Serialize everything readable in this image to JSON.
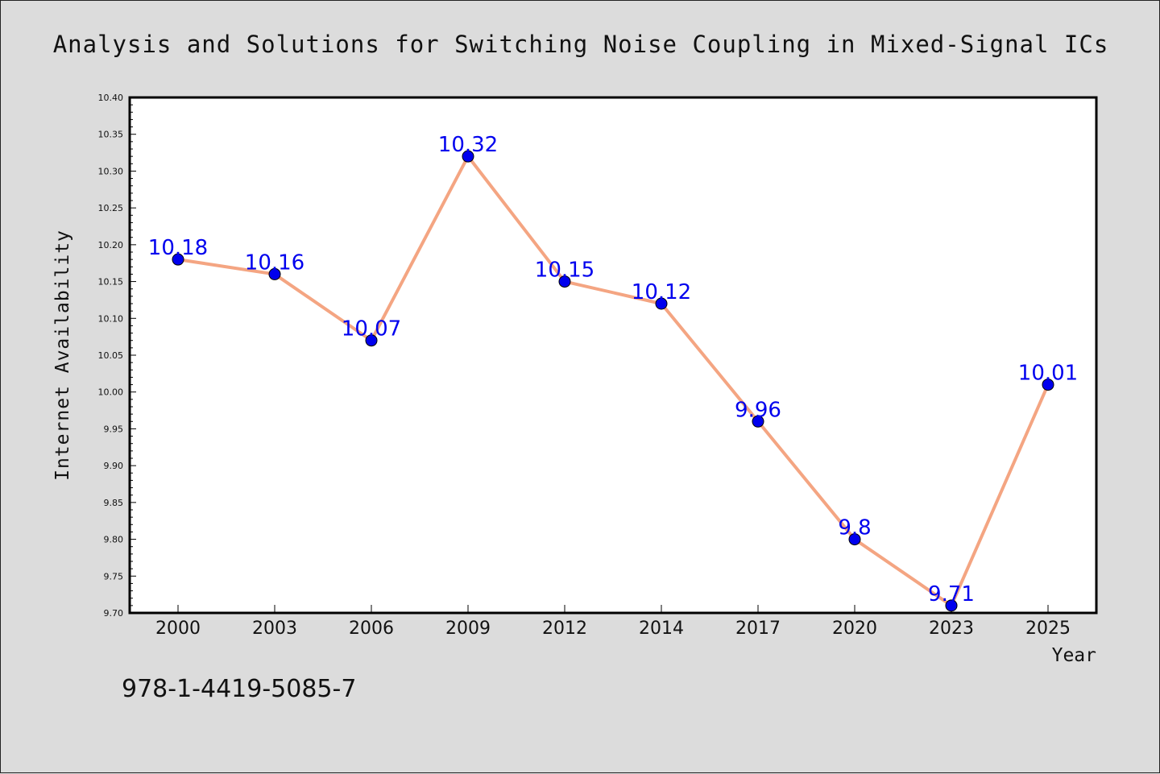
{
  "chart_data": {
    "type": "line",
    "title": "Analysis and Solutions for Switching Noise Coupling in Mixed-Signal ICs",
    "xlabel": "Year",
    "ylabel": "Internet Availability",
    "categories": [
      "2000",
      "2003",
      "2006",
      "2009",
      "2012",
      "2014",
      "2017",
      "2020",
      "2023",
      "2025"
    ],
    "series": [
      {
        "values": [
          10.18,
          10.16,
          10.07,
          10.32,
          10.15,
          10.12,
          9.96,
          9.8,
          9.71,
          10.01
        ],
        "labels": [
          "10.18",
          "10.16",
          "10.07",
          "10.32",
          "10.15",
          "10.12",
          "9.96",
          "9.8",
          "9.71",
          "10.01"
        ]
      }
    ],
    "ylim": [
      9.7,
      10.4
    ],
    "yticks": [
      "9.70",
      "9.75",
      "9.80",
      "9.85",
      "9.90",
      "9.95",
      "10.00",
      "10.05",
      "10.10",
      "10.15",
      "10.20",
      "10.25",
      "10.30",
      "10.35",
      "10.40"
    ],
    "grid": false,
    "line_color": "#f4a582",
    "marker_color": "#0000ee",
    "label_color": "#0000ee"
  },
  "annotation": {
    "isbn": "978-1-4419-5085-7"
  }
}
